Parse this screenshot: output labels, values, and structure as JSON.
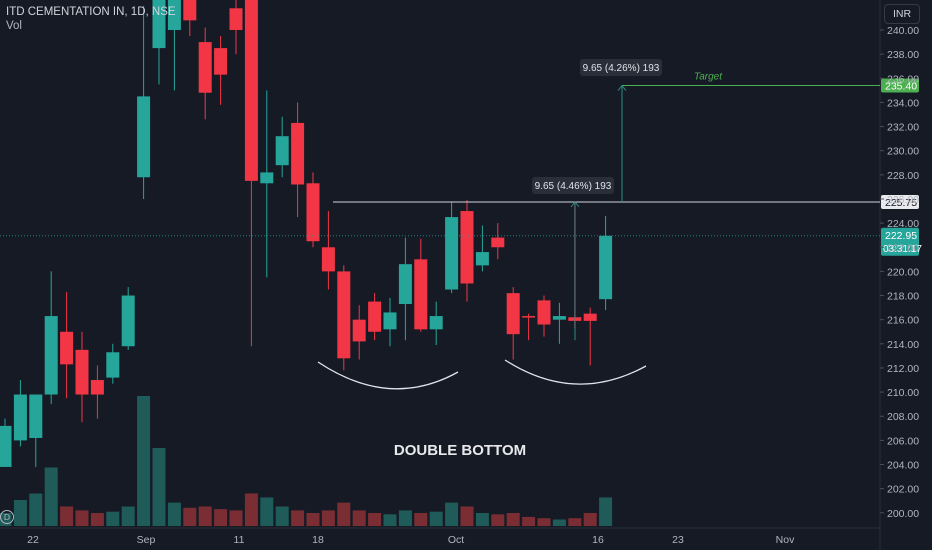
{
  "header": {
    "symbol_line": "ITD CEMENTATION IN, 1D, NSE",
    "volume_label": "Vol",
    "currency": "INR"
  },
  "annotations": {
    "pattern_label": "DOUBLE BOTTOM",
    "measure_1": "9.65 (4.46%) 193",
    "measure_2": "9.65 (4.26%) 193",
    "target_label": "Target"
  },
  "price_tags": {
    "target": "235.40",
    "neckline": "225.75",
    "last_price": "222.95",
    "countdown": "03:31:17"
  },
  "colors": {
    "background": "#161a25",
    "up": "#26a69a",
    "down": "#f23645",
    "target": "#4caf50",
    "neckline": "#d1d4dc"
  },
  "chart_data": {
    "type": "candlestick",
    "y_axis": {
      "ticks": [
        "240.00",
        "238.00",
        "236.00",
        "234.00",
        "232.00",
        "230.00",
        "228.00",
        "226.00",
        "224.00",
        "222.00",
        "220.00",
        "218.00",
        "216.00",
        "214.00",
        "212.00",
        "210.00",
        "208.00",
        "206.00",
        "204.00",
        "202.00",
        "200.00"
      ]
    },
    "x_axis": {
      "ticks": [
        "22",
        "Sep",
        "11",
        "18",
        "Oct",
        "16",
        "23",
        "Nov"
      ]
    },
    "candles": [
      {
        "o": 203.8,
        "h": 207.8,
        "l": 203.8,
        "c": 207.2,
        "v": 10
      },
      {
        "o": 206.0,
        "h": 211.0,
        "l": 205.5,
        "c": 209.8,
        "v": 20
      },
      {
        "o": 206.2,
        "h": 209.8,
        "l": 203.8,
        "c": 209.8,
        "v": 25
      },
      {
        "o": 209.8,
        "h": 220.0,
        "l": 209.0,
        "c": 216.3,
        "v": 45
      },
      {
        "o": 215.0,
        "h": 218.3,
        "l": 209.5,
        "c": 212.3,
        "v": 15
      },
      {
        "o": 213.5,
        "h": 215.0,
        "l": 207.5,
        "c": 209.8,
        "v": 12
      },
      {
        "o": 211.0,
        "h": 212.2,
        "l": 207.8,
        "c": 209.8,
        "v": 10
      },
      {
        "o": 211.2,
        "h": 214.0,
        "l": 210.7,
        "c": 213.3,
        "v": 11
      },
      {
        "o": 213.8,
        "h": 218.7,
        "l": 213.5,
        "c": 218.0,
        "v": 15
      },
      {
        "o": 227.8,
        "h": 242.0,
        "l": 226.0,
        "c": 234.5,
        "v": 100
      },
      {
        "o": 238.5,
        "h": 245.0,
        "l": 235.5,
        "c": 242.5,
        "v": 60
      },
      {
        "o": 240.0,
        "h": 244.5,
        "l": 235.0,
        "c": 242.8,
        "v": 18
      },
      {
        "o": 242.5,
        "h": 244.5,
        "l": 239.5,
        "c": 240.8,
        "v": 14
      },
      {
        "o": 239.0,
        "h": 240.2,
        "l": 232.6,
        "c": 234.8,
        "v": 15
      },
      {
        "o": 238.5,
        "h": 239.5,
        "l": 233.8,
        "c": 236.3,
        "v": 13
      },
      {
        "o": 241.8,
        "h": 244.0,
        "l": 238.0,
        "c": 240.0,
        "v": 12
      },
      {
        "o": 242.5,
        "h": 245.0,
        "l": 213.8,
        "c": 227.5,
        "v": 25
      },
      {
        "o": 227.3,
        "h": 235.0,
        "l": 219.5,
        "c": 228.2,
        "v": 22
      },
      {
        "o": 228.8,
        "h": 232.8,
        "l": 227.8,
        "c": 231.2,
        "v": 15
      },
      {
        "o": 232.3,
        "h": 234.0,
        "l": 224.5,
        "c": 227.2,
        "v": 12
      },
      {
        "o": 227.3,
        "h": 228.2,
        "l": 222.0,
        "c": 222.5,
        "v": 10
      },
      {
        "o": 222.0,
        "h": 225.0,
        "l": 218.5,
        "c": 220.0,
        "v": 12
      },
      {
        "o": 220.0,
        "h": 220.5,
        "l": 211.8,
        "c": 212.8,
        "v": 18
      },
      {
        "o": 216.0,
        "h": 217.2,
        "l": 212.7,
        "c": 214.2,
        "v": 12
      },
      {
        "o": 217.5,
        "h": 218.2,
        "l": 214.3,
        "c": 215.0,
        "v": 10
      },
      {
        "o": 215.2,
        "h": 217.8,
        "l": 213.8,
        "c": 216.6,
        "v": 9
      },
      {
        "o": 217.3,
        "h": 222.8,
        "l": 214.3,
        "c": 220.6,
        "v": 12
      },
      {
        "o": 221.0,
        "h": 222.7,
        "l": 215.0,
        "c": 215.2,
        "v": 10
      },
      {
        "o": 215.2,
        "h": 217.5,
        "l": 213.9,
        "c": 216.3,
        "v": 11
      },
      {
        "o": 218.5,
        "h": 225.8,
        "l": 218.2,
        "c": 224.5,
        "v": 18
      },
      {
        "o": 225.0,
        "h": 225.9,
        "l": 217.5,
        "c": 219.0,
        "v": 15
      },
      {
        "o": 220.5,
        "h": 223.8,
        "l": 220.0,
        "c": 221.6,
        "v": 10
      },
      {
        "o": 222.8,
        "h": 224.0,
        "l": 221.0,
        "c": 222.0,
        "v": 9
      },
      {
        "o": 218.2,
        "h": 218.7,
        "l": 212.7,
        "c": 214.8,
        "v": 10
      },
      {
        "o": 216.3,
        "h": 216.5,
        "l": 214.3,
        "c": 216.2,
        "v": 7
      },
      {
        "o": 217.6,
        "h": 218.0,
        "l": 214.6,
        "c": 215.6,
        "v": 6
      },
      {
        "o": 216.0,
        "h": 217.4,
        "l": 214.0,
        "c": 216.3,
        "v": 5
      },
      {
        "o": 216.2,
        "h": 225.8,
        "l": 215.3,
        "c": 215.9,
        "v": 6
      },
      {
        "o": 216.5,
        "h": 217.0,
        "l": 212.2,
        "c": 215.9,
        "v": 10
      },
      {
        "o": 217.7,
        "h": 224.6,
        "l": 216.8,
        "c": 222.95,
        "v": 22
      }
    ]
  }
}
